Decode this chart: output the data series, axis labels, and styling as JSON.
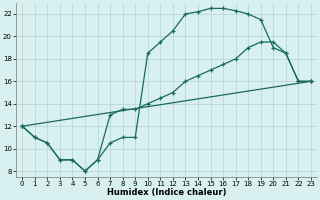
{
  "xlabel": "Humidex (Indice chaleur)",
  "xlim": [
    -0.5,
    23.5
  ],
  "ylim": [
    7.5,
    23
  ],
  "yticks": [
    8,
    10,
    12,
    14,
    16,
    18,
    20,
    22
  ],
  "xticks": [
    0,
    1,
    2,
    3,
    4,
    5,
    6,
    7,
    8,
    9,
    10,
    11,
    12,
    13,
    14,
    15,
    16,
    17,
    18,
    19,
    20,
    21,
    22,
    23
  ],
  "line_color": "#1a6b5a",
  "bg_color": "#d8f0f0",
  "grid_color": "#b8d8d8",
  "line1_x": [
    0,
    1,
    2,
    3,
    4,
    5,
    6,
    7,
    8,
    9,
    10,
    11,
    12,
    13,
    14,
    15,
    16,
    17,
    18,
    19,
    20,
    21,
    22,
    23
  ],
  "line1_y": [
    12,
    11,
    10.5,
    9,
    9,
    8,
    9,
    10.5,
    11,
    11,
    18.5,
    19.5,
    20.5,
    22,
    22.2,
    22.5,
    22.5,
    22.3,
    22,
    21.5,
    19,
    18.5,
    16,
    16
  ],
  "line2_x": [
    0,
    1,
    2,
    3,
    4,
    5,
    6,
    7,
    8,
    9,
    10,
    11,
    12,
    13,
    14,
    15,
    16,
    17,
    18,
    19,
    20,
    21,
    22,
    23
  ],
  "line2_y": [
    12,
    11,
    10.5,
    9,
    9,
    8,
    9,
    13,
    13.5,
    13.5,
    14,
    14.5,
    15,
    16,
    16.5,
    17,
    17.5,
    18,
    19,
    19.5,
    19.5,
    18.5,
    16,
    16
  ],
  "line3_x": [
    0,
    23
  ],
  "line3_y": [
    12,
    16
  ]
}
